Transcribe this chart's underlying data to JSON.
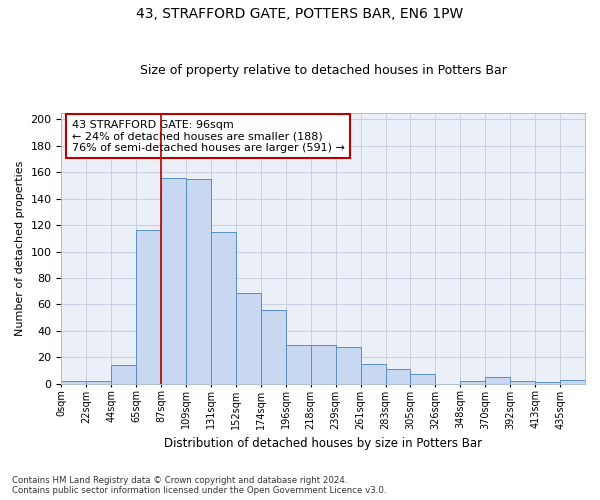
{
  "title": "43, STRAFFORD GATE, POTTERS BAR, EN6 1PW",
  "subtitle": "Size of property relative to detached houses in Potters Bar",
  "xlabel": "Distribution of detached houses by size in Potters Bar",
  "ylabel": "Number of detached properties",
  "bar_values": [
    2,
    2,
    14,
    116,
    156,
    155,
    115,
    69,
    56,
    29,
    29,
    28,
    15,
    11,
    7,
    0,
    2,
    5,
    2,
    1,
    3
  ],
  "tick_labels": [
    "0sqm",
    "22sqm",
    "44sqm",
    "65sqm",
    "87sqm",
    "109sqm",
    "131sqm",
    "152sqm",
    "174sqm",
    "196sqm",
    "218sqm",
    "239sqm",
    "261sqm",
    "283sqm",
    "305sqm",
    "326sqm",
    "348sqm",
    "370sqm",
    "392sqm",
    "413sqm",
    "435sqm"
  ],
  "bar_color": "#c8d8f0",
  "bar_edge_color": "#5a8ec8",
  "grid_color": "#c8d0e0",
  "bg_color": "#eaeff8",
  "vline_x": 4,
  "vline_color": "#bb0000",
  "annotation_text": "43 STRAFFORD GATE: 96sqm\n← 24% of detached houses are smaller (188)\n76% of semi-detached houses are larger (591) →",
  "annotation_box_color": "#ffffff",
  "annotation_box_edge": "#bb0000",
  "footer_text": "Contains HM Land Registry data © Crown copyright and database right 2024.\nContains public sector information licensed under the Open Government Licence v3.0.",
  "ylim": [
    0,
    205
  ],
  "yticks": [
    0,
    20,
    40,
    60,
    80,
    100,
    120,
    140,
    160,
    180,
    200
  ]
}
